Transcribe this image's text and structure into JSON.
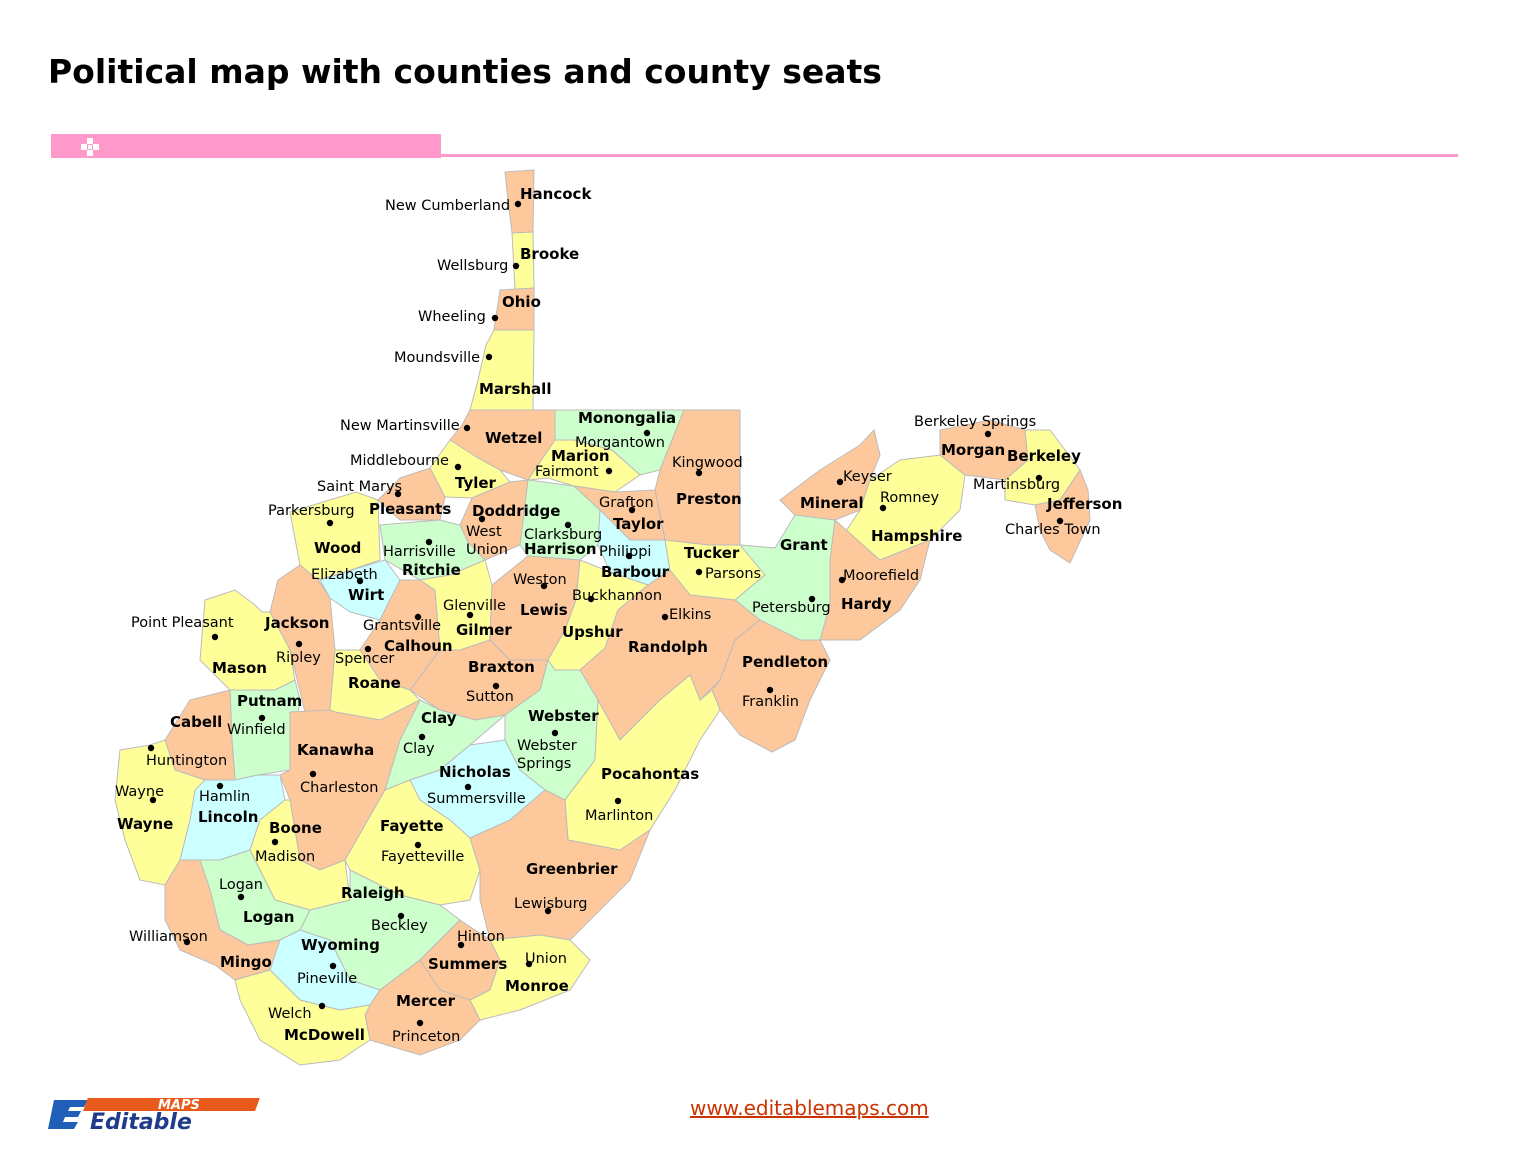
{
  "page": {
    "title": "Political map with counties and county seats",
    "website": "www.editablemaps.com"
  },
  "logo": {
    "top_text": "MAPS",
    "main_text": "Editable",
    "initial": "E"
  },
  "colors": {
    "peach": "#fdc99c",
    "yellow": "#ffff99",
    "green": "#ccffcc",
    "cyan": "#ccffff",
    "accent": "#ff99cc",
    "link": "#cc3300"
  },
  "counties": [
    {
      "name": "Hancock",
      "color": "peach",
      "seat": "New Cumberland"
    },
    {
      "name": "Brooke",
      "color": "yellow",
      "seat": "Wellsburg"
    },
    {
      "name": "Ohio",
      "color": "peach",
      "seat": "Wheeling"
    },
    {
      "name": "Marshall",
      "color": "yellow",
      "seat": "Moundsville"
    },
    {
      "name": "Wetzel",
      "color": "peach",
      "seat": "New Martinsville"
    },
    {
      "name": "Monongalia",
      "color": "green",
      "seat": "Morgantown"
    },
    {
      "name": "Marion",
      "color": "yellow",
      "seat": "Fairmont"
    },
    {
      "name": "Preston",
      "color": "peach",
      "seat": "Kingwood"
    },
    {
      "name": "Tyler",
      "color": "yellow",
      "seat": "Middlebourne"
    },
    {
      "name": "Pleasants",
      "color": "peach",
      "seat": "Saint Marys"
    },
    {
      "name": "Wood",
      "color": "yellow",
      "seat": "Parkersburg"
    },
    {
      "name": "Doddridge",
      "color": "peach",
      "seat": "West Union"
    },
    {
      "name": "Harrison",
      "color": "green",
      "seat": "Clarksburg"
    },
    {
      "name": "Taylor",
      "color": "peach",
      "seat": "Grafton"
    },
    {
      "name": "Ritchie",
      "color": "green",
      "seat": "Harrisville"
    },
    {
      "name": "Wirt",
      "color": "cyan",
      "seat": "Elizabeth"
    },
    {
      "name": "Barbour",
      "color": "cyan",
      "seat": "Philippi"
    },
    {
      "name": "Tucker",
      "color": "yellow",
      "seat": "Parsons"
    },
    {
      "name": "Mineral",
      "color": "peach",
      "seat": "Keyser"
    },
    {
      "name": "Hampshire",
      "color": "yellow",
      "seat": "Romney"
    },
    {
      "name": "Morgan",
      "color": "peach",
      "seat": "Berkeley Springs"
    },
    {
      "name": "Berkeley",
      "color": "yellow",
      "seat": "Martinsburg"
    },
    {
      "name": "Jefferson",
      "color": "peach",
      "seat": "Charles Town"
    },
    {
      "name": "Grant",
      "color": "green",
      "seat": "Petersburg"
    },
    {
      "name": "Hardy",
      "color": "peach",
      "seat": "Moorefield"
    },
    {
      "name": "Jackson",
      "color": "peach",
      "seat": "Ripley"
    },
    {
      "name": "Mason",
      "color": "yellow",
      "seat": "Point Pleasant"
    },
    {
      "name": "Calhoun",
      "color": "peach",
      "seat": "Grantsville"
    },
    {
      "name": "Gilmer",
      "color": "yellow",
      "seat": "Glenville"
    },
    {
      "name": "Lewis",
      "color": "peach",
      "seat": "Weston"
    },
    {
      "name": "Upshur",
      "color": "yellow",
      "seat": "Buckhannon"
    },
    {
      "name": "Randolph",
      "color": "peach",
      "seat": "Elkins"
    },
    {
      "name": "Pendleton",
      "color": "peach",
      "seat": "Franklin"
    },
    {
      "name": "Roane",
      "color": "yellow",
      "seat": "Spencer"
    },
    {
      "name": "Braxton",
      "color": "peach",
      "seat": "Sutton"
    },
    {
      "name": "Putnam",
      "color": "green",
      "seat": "Winfield"
    },
    {
      "name": "Cabell",
      "color": "peach",
      "seat": "Huntington"
    },
    {
      "name": "Kanawha",
      "color": "peach",
      "seat": "Charleston"
    },
    {
      "name": "Clay",
      "color": "green",
      "seat": "Clay"
    },
    {
      "name": "Webster",
      "color": "green",
      "seat": "Webster Springs"
    },
    {
      "name": "Nicholas",
      "color": "cyan",
      "seat": "Summersville"
    },
    {
      "name": "Pocahontas",
      "color": "yellow",
      "seat": "Marlinton"
    },
    {
      "name": "Wayne",
      "color": "yellow",
      "seat": "Wayne"
    },
    {
      "name": "Lincoln",
      "color": "cyan",
      "seat": "Hamlin"
    },
    {
      "name": "Boone",
      "color": "yellow",
      "seat": "Madison"
    },
    {
      "name": "Fayette",
      "color": "yellow",
      "seat": "Fayetteville"
    },
    {
      "name": "Greenbrier",
      "color": "peach",
      "seat": "Lewisburg"
    },
    {
      "name": "Logan",
      "color": "green",
      "seat": "Logan"
    },
    {
      "name": "Raleigh",
      "color": "green",
      "seat": "Beckley"
    },
    {
      "name": "Mingo",
      "color": "peach",
      "seat": "Williamson"
    },
    {
      "name": "Wyoming",
      "color": "cyan",
      "seat": "Pineville"
    },
    {
      "name": "Summers",
      "color": "peach",
      "seat": "Hinton"
    },
    {
      "name": "Monroe",
      "color": "yellow",
      "seat": "Union"
    },
    {
      "name": "Mercer",
      "color": "peach",
      "seat": "Princeton"
    },
    {
      "name": "McDowell",
      "color": "yellow",
      "seat": "Welch"
    }
  ]
}
